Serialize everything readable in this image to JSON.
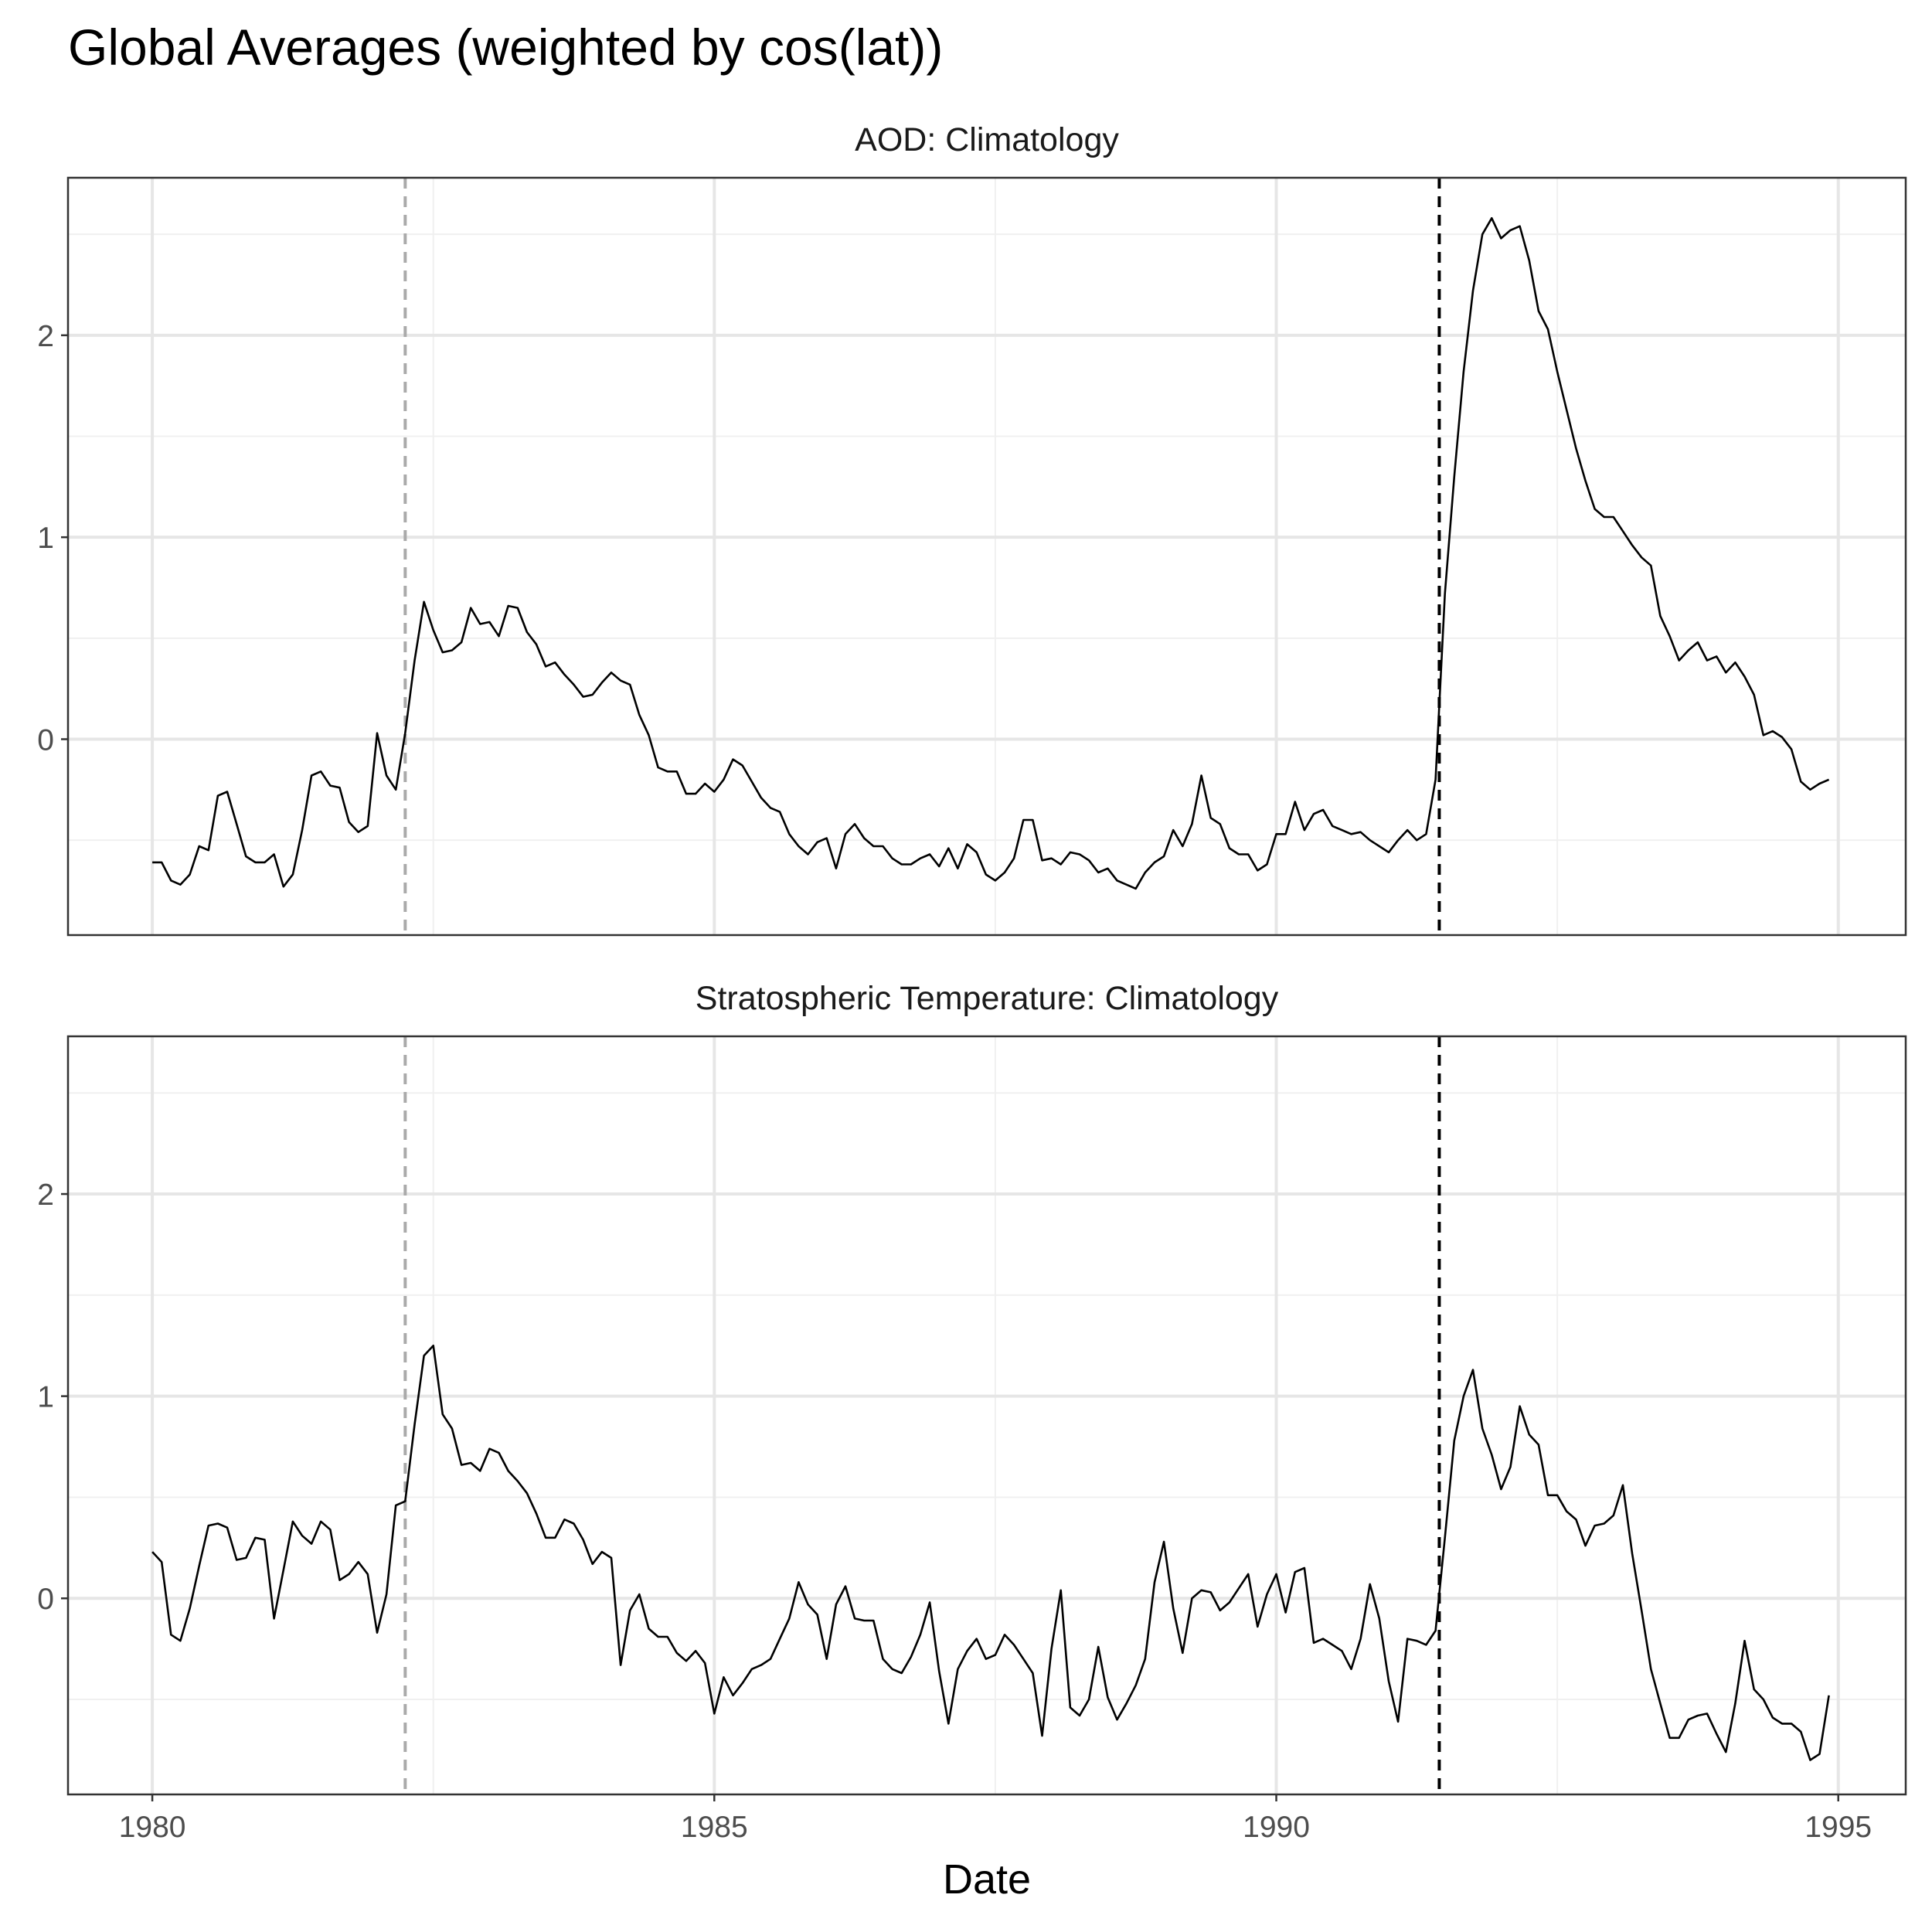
{
  "colors": {
    "panel_border": "#333333",
    "grid_major": "#e6e6e6",
    "grid_minor": "#f0f0f0",
    "series": "#000000",
    "event_1982": "#aaaaaa",
    "event_1991": "#000000"
  },
  "chart_data": {
    "type": "line",
    "title": "Global Averages (weighted by cos(lat))",
    "xlabel": "Date",
    "ylabel": "",
    "x_ticks": [
      "1980",
      "1985",
      "1990",
      "1995"
    ],
    "y_ticks": [
      "0",
      "1",
      "2"
    ],
    "xlim": [
      1979.25,
      1995.6
    ],
    "ylim": [
      -0.97,
      2.78
    ],
    "grid": true,
    "facet_layout": "vertical, shared axes",
    "event_lines": [
      {
        "x": 1982.25,
        "style": "dashed",
        "color": "grey"
      },
      {
        "x": 1991.45,
        "style": "dashed",
        "color": "black"
      }
    ],
    "x_start": 1980.0,
    "x_step": 0.0833333,
    "panels": [
      {
        "strip": "AOD: Climatology",
        "values": [
          -0.61,
          -0.61,
          -0.7,
          -0.72,
          -0.67,
          -0.53,
          -0.55,
          -0.28,
          -0.26,
          -0.42,
          -0.58,
          -0.61,
          -0.61,
          -0.57,
          -0.73,
          -0.67,
          -0.45,
          -0.18,
          -0.16,
          -0.23,
          -0.24,
          -0.41,
          -0.46,
          -0.43,
          0.03,
          -0.18,
          -0.25,
          0.03,
          0.39,
          0.68,
          0.54,
          0.43,
          0.44,
          0.48,
          0.65,
          0.57,
          0.58,
          0.51,
          0.66,
          0.65,
          0.53,
          0.47,
          0.36,
          0.38,
          0.32,
          0.27,
          0.21,
          0.22,
          0.28,
          0.33,
          0.29,
          0.27,
          0.12,
          0.02,
          -0.14,
          -0.16,
          -0.16,
          -0.27,
          -0.27,
          -0.22,
          -0.26,
          -0.2,
          -0.1,
          -0.13,
          -0.21,
          -0.29,
          -0.34,
          -0.36,
          -0.47,
          -0.53,
          -0.57,
          -0.51,
          -0.49,
          -0.64,
          -0.47,
          -0.42,
          -0.49,
          -0.53,
          -0.53,
          -0.59,
          -0.62,
          -0.62,
          -0.59,
          -0.57,
          -0.63,
          -0.54,
          -0.64,
          -0.52,
          -0.56,
          -0.67,
          -0.7,
          -0.66,
          -0.59,
          -0.4,
          -0.4,
          -0.6,
          -0.59,
          -0.62,
          -0.56,
          -0.57,
          -0.6,
          -0.66,
          -0.64,
          -0.7,
          -0.72,
          -0.74,
          -0.66,
          -0.61,
          -0.58,
          -0.45,
          -0.53,
          -0.42,
          -0.18,
          -0.39,
          -0.42,
          -0.54,
          -0.57,
          -0.57,
          -0.65,
          -0.62,
          -0.47,
          -0.47,
          -0.31,
          -0.45,
          -0.37,
          -0.35,
          -0.43,
          -0.45,
          -0.47,
          -0.46,
          -0.5,
          -0.53,
          -0.56,
          -0.5,
          -0.45,
          -0.5,
          -0.47,
          -0.2,
          0.72,
          1.3,
          1.82,
          2.22,
          2.5,
          2.58,
          2.48,
          2.52,
          2.54,
          2.37,
          2.12,
          2.03,
          1.82,
          1.63,
          1.44,
          1.28,
          1.14,
          1.1,
          1.1,
          1.03,
          0.96,
          0.9,
          0.86,
          0.61,
          0.51,
          0.39,
          0.44,
          0.48,
          0.39,
          0.41,
          0.33,
          0.38,
          0.31,
          0.22,
          0.02,
          0.04,
          0.01,
          -0.05,
          -0.21,
          -0.25,
          -0.22,
          -0.2
        ]
      },
      {
        "strip": "Stratospheric Temperature: Climatology",
        "values": [
          0.23,
          0.18,
          -0.18,
          -0.21,
          -0.05,
          0.16,
          0.36,
          0.37,
          0.35,
          0.19,
          0.2,
          0.3,
          0.29,
          -0.1,
          0.14,
          0.38,
          0.31,
          0.27,
          0.38,
          0.34,
          0.09,
          0.12,
          0.18,
          0.12,
          -0.17,
          0.02,
          0.46,
          0.48,
          0.86,
          1.2,
          1.25,
          0.91,
          0.84,
          0.66,
          0.67,
          0.63,
          0.74,
          0.72,
          0.63,
          0.58,
          0.52,
          0.42,
          0.3,
          0.3,
          0.39,
          0.37,
          0.29,
          0.17,
          0.23,
          0.2,
          -0.33,
          -0.06,
          0.02,
          -0.15,
          -0.19,
          -0.19,
          -0.27,
          -0.31,
          -0.26,
          -0.32,
          -0.57,
          -0.39,
          -0.48,
          -0.42,
          -0.35,
          -0.33,
          -0.3,
          -0.2,
          -0.1,
          0.08,
          -0.03,
          -0.08,
          -0.3,
          -0.03,
          0.06,
          -0.1,
          -0.11,
          -0.11,
          -0.3,
          -0.35,
          -0.37,
          -0.29,
          -0.18,
          -0.02,
          -0.36,
          -0.62,
          -0.35,
          -0.26,
          -0.2,
          -0.3,
          -0.28,
          -0.18,
          -0.23,
          -0.3,
          -0.37,
          -0.68,
          -0.25,
          0.04,
          -0.54,
          -0.58,
          -0.5,
          -0.24,
          -0.49,
          -0.6,
          -0.52,
          -0.43,
          -0.3,
          0.08,
          0.28,
          -0.05,
          -0.27,
          0.0,
          0.04,
          0.03,
          -0.06,
          -0.02,
          0.05,
          0.12,
          -0.14,
          0.02,
          0.12,
          -0.07,
          0.13,
          0.15,
          -0.22,
          -0.2,
          -0.23,
          -0.26,
          -0.35,
          -0.2,
          0.07,
          -0.1,
          -0.41,
          -0.61,
          -0.2,
          -0.21,
          -0.23,
          -0.16,
          0.3,
          0.78,
          1.0,
          1.13,
          0.84,
          0.71,
          0.54,
          0.65,
          0.95,
          0.81,
          0.76,
          0.51,
          0.51,
          0.43,
          0.39,
          0.26,
          0.36,
          0.37,
          0.41,
          0.56,
          0.22,
          -0.06,
          -0.35,
          -0.52,
          -0.69,
          -0.69,
          -0.6,
          -0.58,
          -0.57,
          -0.67,
          -0.76,
          -0.52,
          -0.21,
          -0.45,
          -0.5,
          -0.59,
          -0.62,
          -0.62,
          -0.66,
          -0.8,
          -0.77,
          -0.48
        ]
      }
    ]
  }
}
